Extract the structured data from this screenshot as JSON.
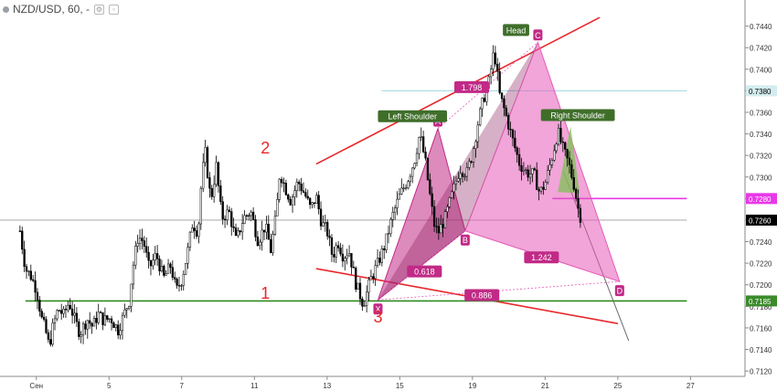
{
  "header": {
    "symbol": "NZD/USD, 60, -"
  },
  "chart_data": {
    "type": "candlestick",
    "symbol": "NZD/USD",
    "interval": "60",
    "ylim": [
      0.7115,
      0.746
    ],
    "yticks": [
      "0.7120",
      "0.7140",
      "0.7160",
      "0.7180",
      "0.7200",
      "0.7220",
      "0.7240",
      "0.7260",
      "0.7280",
      "0.7300",
      "0.7320",
      "0.7340",
      "0.7360",
      "0.7380",
      "0.7400",
      "0.7420",
      "0.7440"
    ],
    "xticks": [
      "Сен",
      "5",
      "7",
      "11",
      "13",
      "15",
      "19",
      "21",
      "25",
      "27"
    ],
    "xtick_days": [
      3.0,
      5.0,
      7.0,
      9.0,
      11.0,
      13.0,
      15.0,
      17.0,
      19.0,
      21.0
    ],
    "price_badges": [
      {
        "value": "0.7380",
        "bg": "#d4ecef",
        "fg": "#000000"
      },
      {
        "value": "0.7280",
        "bg": "#e838e8",
        "fg": "#ffffff"
      },
      {
        "value": "0.7260",
        "bg": "#000000",
        "fg": "#ffffff"
      },
      {
        "value": "0.7185",
        "bg": "#3a8b2a",
        "fg": "#ffffff"
      }
    ],
    "price_path": [
      [
        2.55,
        0.725
      ],
      [
        2.7,
        0.7215
      ],
      [
        2.85,
        0.7208
      ],
      [
        3.0,
        0.7196
      ],
      [
        3.15,
        0.7168
      ],
      [
        3.25,
        0.7158
      ],
      [
        3.35,
        0.7143
      ],
      [
        3.45,
        0.716
      ],
      [
        3.6,
        0.7178
      ],
      [
        3.75,
        0.7172
      ],
      [
        3.9,
        0.7184
      ],
      [
        4.05,
        0.7168
      ],
      [
        4.2,
        0.7155
      ],
      [
        4.4,
        0.7168
      ],
      [
        4.55,
        0.7161
      ],
      [
        4.7,
        0.7173
      ],
      [
        4.85,
        0.7167
      ],
      [
        5.05,
        0.7169
      ],
      [
        5.25,
        0.7158
      ],
      [
        5.45,
        0.7176
      ],
      [
        5.55,
        0.7185
      ],
      [
        5.65,
        0.7215
      ],
      [
        5.8,
        0.7245
      ],
      [
        5.95,
        0.724
      ],
      [
        6.1,
        0.7215
      ],
      [
        6.3,
        0.7228
      ],
      [
        6.5,
        0.7206
      ],
      [
        6.7,
        0.7218
      ],
      [
        6.85,
        0.7194
      ],
      [
        7.0,
        0.7205
      ],
      [
        7.15,
        0.7228
      ],
      [
        7.3,
        0.7258
      ],
      [
        7.45,
        0.7248
      ],
      [
        7.55,
        0.73
      ],
      [
        7.65,
        0.7322
      ],
      [
        7.8,
        0.7278
      ],
      [
        7.95,
        0.731
      ],
      [
        8.1,
        0.7262
      ],
      [
        8.3,
        0.7268
      ],
      [
        8.5,
        0.724
      ],
      [
        8.7,
        0.7262
      ],
      [
        8.9,
        0.7268
      ],
      [
        9.1,
        0.7241
      ],
      [
        9.3,
        0.7255
      ],
      [
        9.45,
        0.7232
      ],
      [
        9.6,
        0.7265
      ],
      [
        9.7,
        0.7305
      ],
      [
        9.85,
        0.729
      ],
      [
        10.0,
        0.7278
      ],
      [
        10.2,
        0.7296
      ],
      [
        10.4,
        0.7283
      ],
      [
        10.55,
        0.727
      ],
      [
        10.7,
        0.7282
      ],
      [
        10.85,
        0.7257
      ],
      [
        11.0,
        0.725
      ],
      [
        11.15,
        0.7226
      ],
      [
        11.3,
        0.724
      ],
      [
        11.45,
        0.7226
      ],
      [
        11.6,
        0.7232
      ],
      [
        11.8,
        0.72
      ],
      [
        12.0,
        0.7182
      ],
      [
        12.2,
        0.7205
      ],
      [
        12.4,
        0.722
      ],
      [
        12.6,
        0.7238
      ],
      [
        12.8,
        0.7264
      ],
      [
        13.0,
        0.7283
      ],
      [
        13.2,
        0.7296
      ],
      [
        13.4,
        0.7315
      ],
      [
        13.55,
        0.734
      ],
      [
        13.7,
        0.7315
      ],
      [
        13.85,
        0.7278
      ],
      [
        13.95,
        0.7256
      ],
      [
        14.05,
        0.7248
      ],
      [
        14.25,
        0.7262
      ],
      [
        14.45,
        0.7285
      ],
      [
        14.65,
        0.7308
      ],
      [
        14.85,
        0.7304
      ],
      [
        15.0,
        0.7322
      ],
      [
        15.15,
        0.735
      ],
      [
        15.3,
        0.7372
      ],
      [
        15.45,
        0.7388
      ],
      [
        15.6,
        0.7418
      ],
      [
        15.75,
        0.7376
      ],
      [
        15.9,
        0.736
      ],
      [
        16.1,
        0.7335
      ],
      [
        16.3,
        0.7312
      ],
      [
        16.5,
        0.7304
      ],
      [
        16.7,
        0.7302
      ],
      [
        16.85,
        0.7285
      ],
      [
        17.0,
        0.7294
      ],
      [
        17.2,
        0.732
      ],
      [
        17.35,
        0.7342
      ],
      [
        17.5,
        0.7325
      ],
      [
        17.65,
        0.7312
      ],
      [
        17.8,
        0.7292
      ],
      [
        17.9,
        0.7272
      ],
      [
        18.0,
        0.726
      ]
    ],
    "trend_lines": [
      {
        "name": "upper-trendline",
        "color": "#e8262a",
        "width": 1.6,
        "from": [
          10.7,
          0.7312
        ],
        "to": [
          18.5,
          0.7448
        ]
      },
      {
        "name": "lower-trendline",
        "color": "#e8262a",
        "width": 1.6,
        "from": [
          10.7,
          0.7215
        ],
        "to": [
          19.0,
          0.7164
        ]
      },
      {
        "name": "green-support-line",
        "color": "#2e8b1e",
        "width": 1.6,
        "from": [
          2.7,
          0.7185
        ],
        "to": [
          20.9,
          0.7185
        ]
      },
      {
        "name": "cyan-resistance-line",
        "color": "#9cd7dc",
        "width": 1.0,
        "from": [
          12.5,
          0.738
        ],
        "to": [
          20.9,
          0.738
        ]
      },
      {
        "name": "magenta-level-line",
        "color": "#e838e8",
        "width": 1.6,
        "from": [
          17.2,
          0.728
        ],
        "to": [
          20.9,
          0.728
        ]
      },
      {
        "name": "current-price-line",
        "color": "#9e9e9e",
        "width": 0.8,
        "from": [
          0.0,
          0.726
        ],
        "to": [
          20.9,
          0.726
        ]
      },
      {
        "name": "projection-line",
        "color": "#6b6b6b",
        "width": 1.0,
        "from": [
          17.5,
          0.7305
        ],
        "to": [
          19.3,
          0.7148
        ]
      }
    ],
    "harmonic_pattern": {
      "points": {
        "X": [
          12.4,
          0.7186
        ],
        "A": [
          14.05,
          0.7345
        ],
        "B": [
          14.8,
          0.725
        ],
        "C": [
          16.8,
          0.7425
        ],
        "D": [
          19.05,
          0.7203
        ]
      },
      "ratios": [
        {
          "label": "0.618",
          "at": [
            13.68,
            0.7212
          ]
        },
        {
          "label": "1.798",
          "at": [
            14.98,
            0.7383
          ]
        },
        {
          "label": "1.242",
          "at": [
            16.9,
            0.7225
          ]
        },
        {
          "label": "0.886",
          "at": [
            15.26,
            0.719
          ]
        }
      ],
      "fill": "#c12a86",
      "fill_right": "#e55bb8"
    },
    "head_and_shoulders": {
      "labels": [
        {
          "text": "Left Shoulder",
          "at": [
            13.35,
            0.7356
          ]
        },
        {
          "text": "Head",
          "at": [
            16.2,
            0.7436
          ]
        },
        {
          "text": "Right Shoulder",
          "at": [
            17.9,
            0.7357
          ]
        }
      ],
      "right_shoulder_poly": [
        [
          17.35,
          0.7286
        ],
        [
          17.7,
          0.7347
        ],
        [
          17.95,
          0.7285
        ]
      ],
      "right_shoulder_fill": "#7fc256"
    },
    "annotations": [
      {
        "text": "1",
        "at": [
          9.3,
          0.7187
        ],
        "color": "#e8262a"
      },
      {
        "text": "2",
        "at": [
          9.3,
          0.7322
        ],
        "color": "#e8262a"
      },
      {
        "text": "3",
        "at": [
          12.4,
          0.7165
        ],
        "color": "#e8262a"
      }
    ]
  }
}
